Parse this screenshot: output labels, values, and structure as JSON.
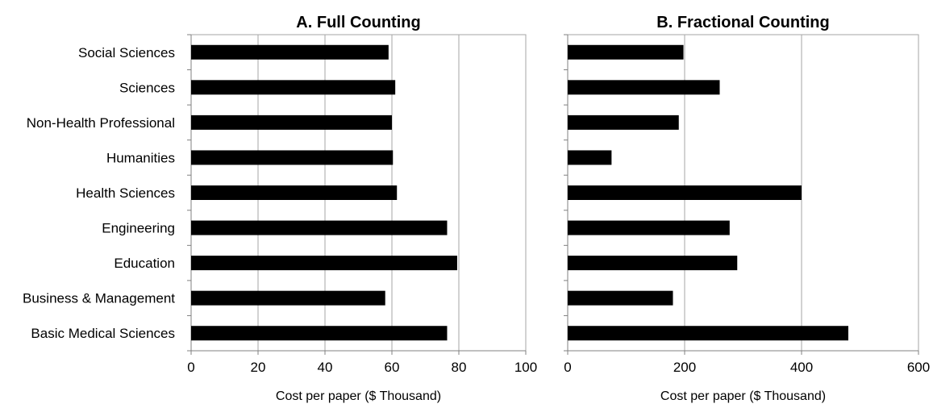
{
  "chart_data": [
    {
      "type": "bar",
      "orientation": "horizontal",
      "title": "A. Full Counting",
      "xlabel": "Cost per paper ($ Thousand)",
      "ylabel": "",
      "xlim": [
        0,
        100
      ],
      "xticks": [
        0,
        20,
        40,
        60,
        80,
        100
      ],
      "grid": true,
      "categories": [
        "Social Sciences",
        "Sciences",
        "Non-Health Professional",
        "Humanities",
        "Health Sciences",
        "Engineering",
        "Education",
        "Business & Management",
        "Basic Medical Sciences"
      ],
      "values": [
        59,
        61,
        60,
        60.3,
        61.5,
        76.5,
        79.5,
        58,
        76.5
      ],
      "bar_color": "#000000"
    },
    {
      "type": "bar",
      "orientation": "horizontal",
      "title": "B. Fractional Counting",
      "xlabel": "Cost per paper ($ Thousand)",
      "ylabel": "",
      "xlim": [
        0,
        600
      ],
      "xticks": [
        0,
        200,
        400,
        600
      ],
      "grid": true,
      "categories": [
        "Social Sciences",
        "Sciences",
        "Non-Health Professional",
        "Humanities",
        "Health Sciences",
        "Engineering",
        "Education",
        "Business & Management",
        "Basic Medical Sciences"
      ],
      "values": [
        198,
        260,
        190,
        75,
        400,
        277,
        290,
        180,
        480
      ],
      "bar_color": "#000000"
    }
  ]
}
